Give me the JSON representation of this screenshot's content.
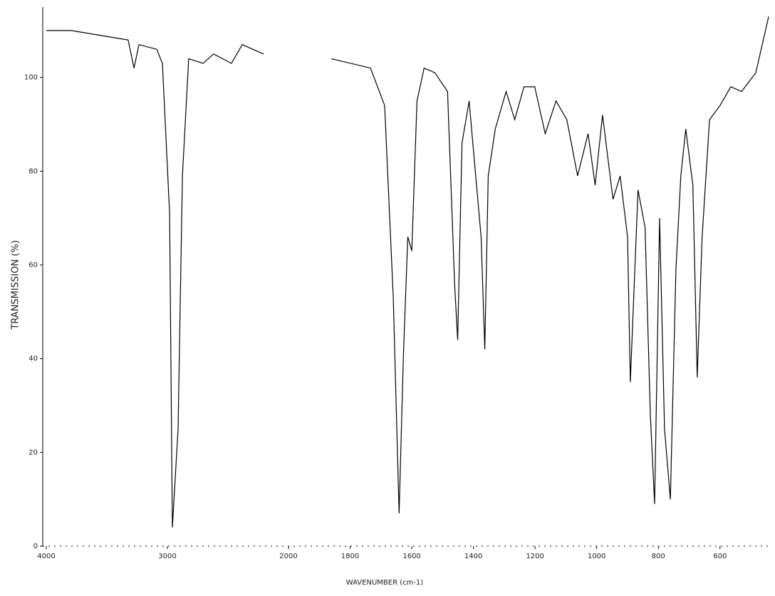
{
  "chart_data": {
    "type": "line",
    "xlabel": "WAVENUMBER (cm-1)",
    "ylabel": "TRANSMISSION (%)",
    "x": [
      4000,
      3794,
      3559,
      3324,
      3276,
      3235,
      3088,
      3041,
      2982,
      2959,
      2912,
      2876,
      2824,
      2706,
      2618,
      2471,
      2382,
      2206,
      2000,
      1861,
      1734,
      1688,
      1660,
      1641,
      1627,
      1613,
      1600,
      1583,
      1560,
      1525,
      1484,
      1461,
      1451,
      1437,
      1414,
      1398,
      1375,
      1363,
      1352,
      1329,
      1294,
      1266,
      1236,
      1201,
      1167,
      1132,
      1097,
      1062,
      1028,
      1005,
      981,
      947,
      924,
      900,
      891,
      866,
      843,
      826,
      812,
      796,
      780,
      761,
      743,
      727,
      711,
      688,
      674,
      658,
      634,
      600,
      565,
      530,
      484,
      442
    ],
    "values": [
      110,
      110,
      109,
      108,
      102,
      107,
      106,
      103,
      71,
      4,
      25,
      79,
      104,
      103,
      105,
      103,
      107,
      105,
      null,
      104,
      102,
      94,
      53,
      7,
      41,
      66,
      63,
      95,
      102,
      101,
      97,
      56,
      44,
      86,
      95,
      83,
      66,
      42,
      79,
      89,
      97,
      91,
      98,
      98,
      88,
      95,
      91,
      79,
      88,
      77,
      92,
      74,
      79,
      66,
      35,
      76,
      68,
      28,
      9,
      70,
      25,
      10,
      59,
      79,
      89,
      77,
      36,
      66,
      91,
      94,
      98,
      97,
      101,
      113
    ],
    "color": "#000000",
    "xlim": [
      4000,
      440
    ],
    "xticks": [
      4000,
      3000,
      2000,
      1800,
      1600,
      1400,
      1200,
      1000,
      800,
      600
    ],
    "ylim": [
      0,
      115
    ],
    "yticks": [
      0,
      20,
      40,
      60,
      80,
      100
    ],
    "grid": false
  }
}
